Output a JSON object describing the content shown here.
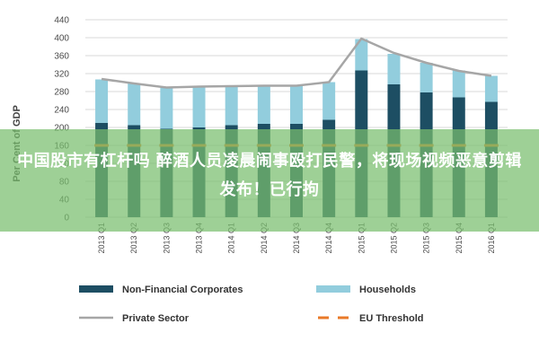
{
  "chart_data": {
    "type": "bar",
    "title": "",
    "ylabel": "Per Cent of GDP",
    "xlabel": "",
    "ylim": [
      0,
      440
    ],
    "yticks": [
      0,
      40,
      80,
      120,
      160,
      200,
      240,
      280,
      320,
      360,
      400,
      440
    ],
    "grid": true,
    "categories": [
      "2013 Q1",
      "2013 Q2",
      "2013 Q3",
      "2013 Q4",
      "2014 Q1",
      "2014 Q2",
      "2014 Q3",
      "2014 Q4",
      "2015 Q1",
      "2015 Q2",
      "2015 Q3",
      "2015 Q4",
      "2016 Q1"
    ],
    "series": [
      {
        "name": "Non-Financial Corporates",
        "kind": "stacked-bar",
        "color": "#1d4e63",
        "values": [
          210,
          205,
          197,
          200,
          205,
          208,
          208,
          217,
          327,
          296,
          278,
          267,
          257
        ]
      },
      {
        "name": "Households",
        "kind": "stacked-bar",
        "color": "#92cddd",
        "values": [
          97,
          93,
          91,
          90,
          86,
          84,
          84,
          84,
          70,
          68,
          66,
          60,
          58
        ]
      },
      {
        "name": "Private Sector",
        "kind": "line",
        "color": "#a6a6a6",
        "values": [
          308,
          298,
          289,
          291,
          292,
          293,
          293,
          301,
          398,
          366,
          344,
          326,
          315
        ]
      },
      {
        "name": "EU Threshold",
        "kind": "dashed-line",
        "color": "#e97a29",
        "values": [
          160,
          160,
          160,
          160,
          160,
          160,
          160,
          160,
          160,
          160,
          160,
          160,
          160
        ]
      }
    ],
    "legend_position": "bottom"
  },
  "overlay": {
    "banner_text": "中国股市有杠杆吗 醉酒人员凌晨闹事殴打民警，将现场视频恶意剪辑发布！已行拘"
  }
}
